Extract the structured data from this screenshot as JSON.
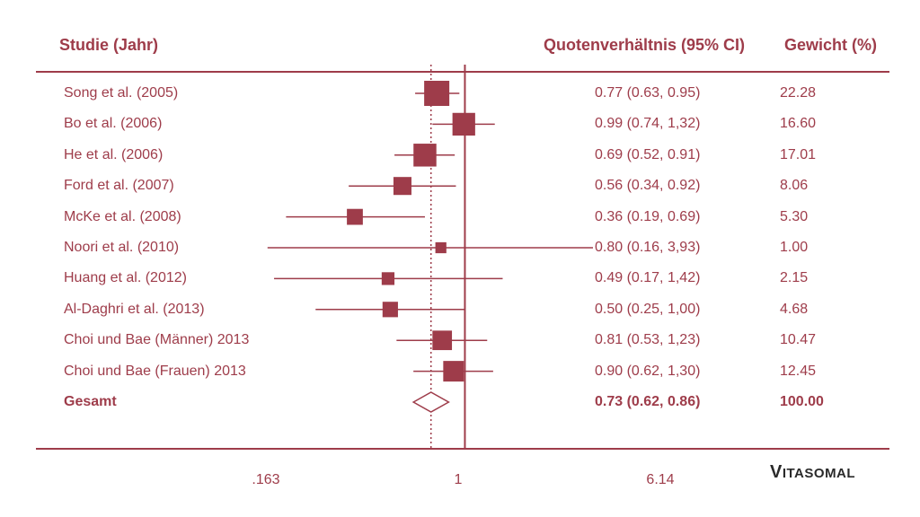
{
  "colors": {
    "primary": "#9e3c4a",
    "logo": "#2a2a2a"
  },
  "headers": {
    "study": "Studie (Jahr)",
    "ci": "Quotenverhältnis (95% CI)",
    "weight": "Gewicht (%)"
  },
  "rows": [
    {
      "study": "Song et al. (2005)",
      "ci": "0.77 (0.63, 0.95)",
      "weight": "22.28"
    },
    {
      "study": "Bo et al. (2006)",
      "ci": "0.99 (0.74, 1,32)",
      "weight": "16.60"
    },
    {
      "study": "He et al. (2006)",
      "ci": "0.69 (0.52, 0.91)",
      "weight": "17.01"
    },
    {
      "study": "Ford et al. (2007)",
      "ci": "0.56 (0.34, 0.92)",
      "weight": "8.06"
    },
    {
      "study": "McKe et al. (2008)",
      "ci": "0.36 (0.19, 0.69)",
      "weight": "5.30"
    },
    {
      "study": "Noori et al. (2010)",
      "ci": "0.80 (0.16, 3,93)",
      "weight": "1.00"
    },
    {
      "study": "Huang et al. (2012)",
      "ci": "0.49 (0.17, 1,42)",
      "weight": "2.15"
    },
    {
      "study": "Al-Daghri et al. (2013)",
      "ci": "0.50 (0.25, 1,00)",
      "weight": "4.68"
    },
    {
      "study": "Choi und Bae (Männer) 2013",
      "ci": "0.81 (0.53, 1,23)",
      "weight": "10.47"
    },
    {
      "study": "Choi und Bae (Frauen) 2013",
      "ci": "0.90 (0.62, 1,30)",
      "weight": "12.45"
    }
  ],
  "total": {
    "study": "Gesamt",
    "ci": "0.73 (0.62, 0.86)",
    "weight": "100.00"
  },
  "axis": {
    "ticks": [
      ".163",
      "1",
      "6.14"
    ]
  },
  "logo": {
    "first": "V",
    "rest": "ITASOMAL"
  },
  "chart_data": {
    "type": "forest",
    "title": "",
    "xlabel": "",
    "scale": "log",
    "xlim": [
      0.163,
      6.14
    ],
    "reference_line": 1,
    "pooled_estimate_line": 0.73,
    "series": [
      {
        "name": "Song et al. (2005)",
        "or": 0.77,
        "lower": 0.63,
        "upper": 0.95,
        "weight": 22.28
      },
      {
        "name": "Bo et al. (2006)",
        "or": 0.99,
        "lower": 0.74,
        "upper": 1.32,
        "weight": 16.6
      },
      {
        "name": "He et al. (2006)",
        "or": 0.69,
        "lower": 0.52,
        "upper": 0.91,
        "weight": 17.01
      },
      {
        "name": "Ford et al. (2007)",
        "or": 0.56,
        "lower": 0.34,
        "upper": 0.92,
        "weight": 8.06
      },
      {
        "name": "McKe et al. (2008)",
        "or": 0.36,
        "lower": 0.19,
        "upper": 0.69,
        "weight": 5.3
      },
      {
        "name": "Noori et al. (2010)",
        "or": 0.8,
        "lower": 0.16,
        "upper": 3.93,
        "weight": 1.0
      },
      {
        "name": "Huang et al. (2012)",
        "or": 0.49,
        "lower": 0.17,
        "upper": 1.42,
        "weight": 2.15
      },
      {
        "name": "Al-Daghri et al. (2013)",
        "or": 0.5,
        "lower": 0.25,
        "upper": 1.0,
        "weight": 4.68
      },
      {
        "name": "Choi und Bae (Männer) 2013",
        "or": 0.81,
        "lower": 0.53,
        "upper": 1.23,
        "weight": 10.47
      },
      {
        "name": "Choi und Bae (Frauen) 2013",
        "or": 0.9,
        "lower": 0.62,
        "upper": 1.3,
        "weight": 12.45
      }
    ],
    "pooled": {
      "name": "Gesamt",
      "or": 0.73,
      "lower": 0.62,
      "upper": 0.86,
      "weight": 100.0
    }
  }
}
